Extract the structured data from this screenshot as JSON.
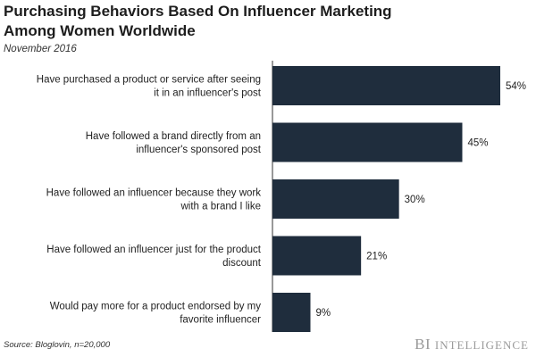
{
  "chart_data": {
    "type": "bar",
    "orientation": "horizontal",
    "title": "Purchasing Behaviors Based On Influencer Marketing\nAmong Women Worldwide",
    "subtitle": "November 2016",
    "categories": [
      "Have purchased a product or service after seeing\nit in an influencer's post",
      "Have followed a brand directly from an\ninfluencer's sponsored post",
      "Have followed an influencer because they work\nwith a brand I like",
      "Have followed an influencer just for the product\ndiscount",
      "Would pay more for a product endorsed by my\nfavorite influencer"
    ],
    "values": [
      54,
      45,
      30,
      21,
      9
    ],
    "value_labels": [
      "54%",
      "45%",
      "30%",
      "21%",
      "9%"
    ],
    "xlim": [
      0,
      54
    ],
    "grid": false,
    "legend": "none",
    "bar_color": "#1f2d3d",
    "source": "Source: Bloglovin, n=20,000",
    "brand": {
      "first": "BI",
      "second": "Intelligence"
    }
  }
}
